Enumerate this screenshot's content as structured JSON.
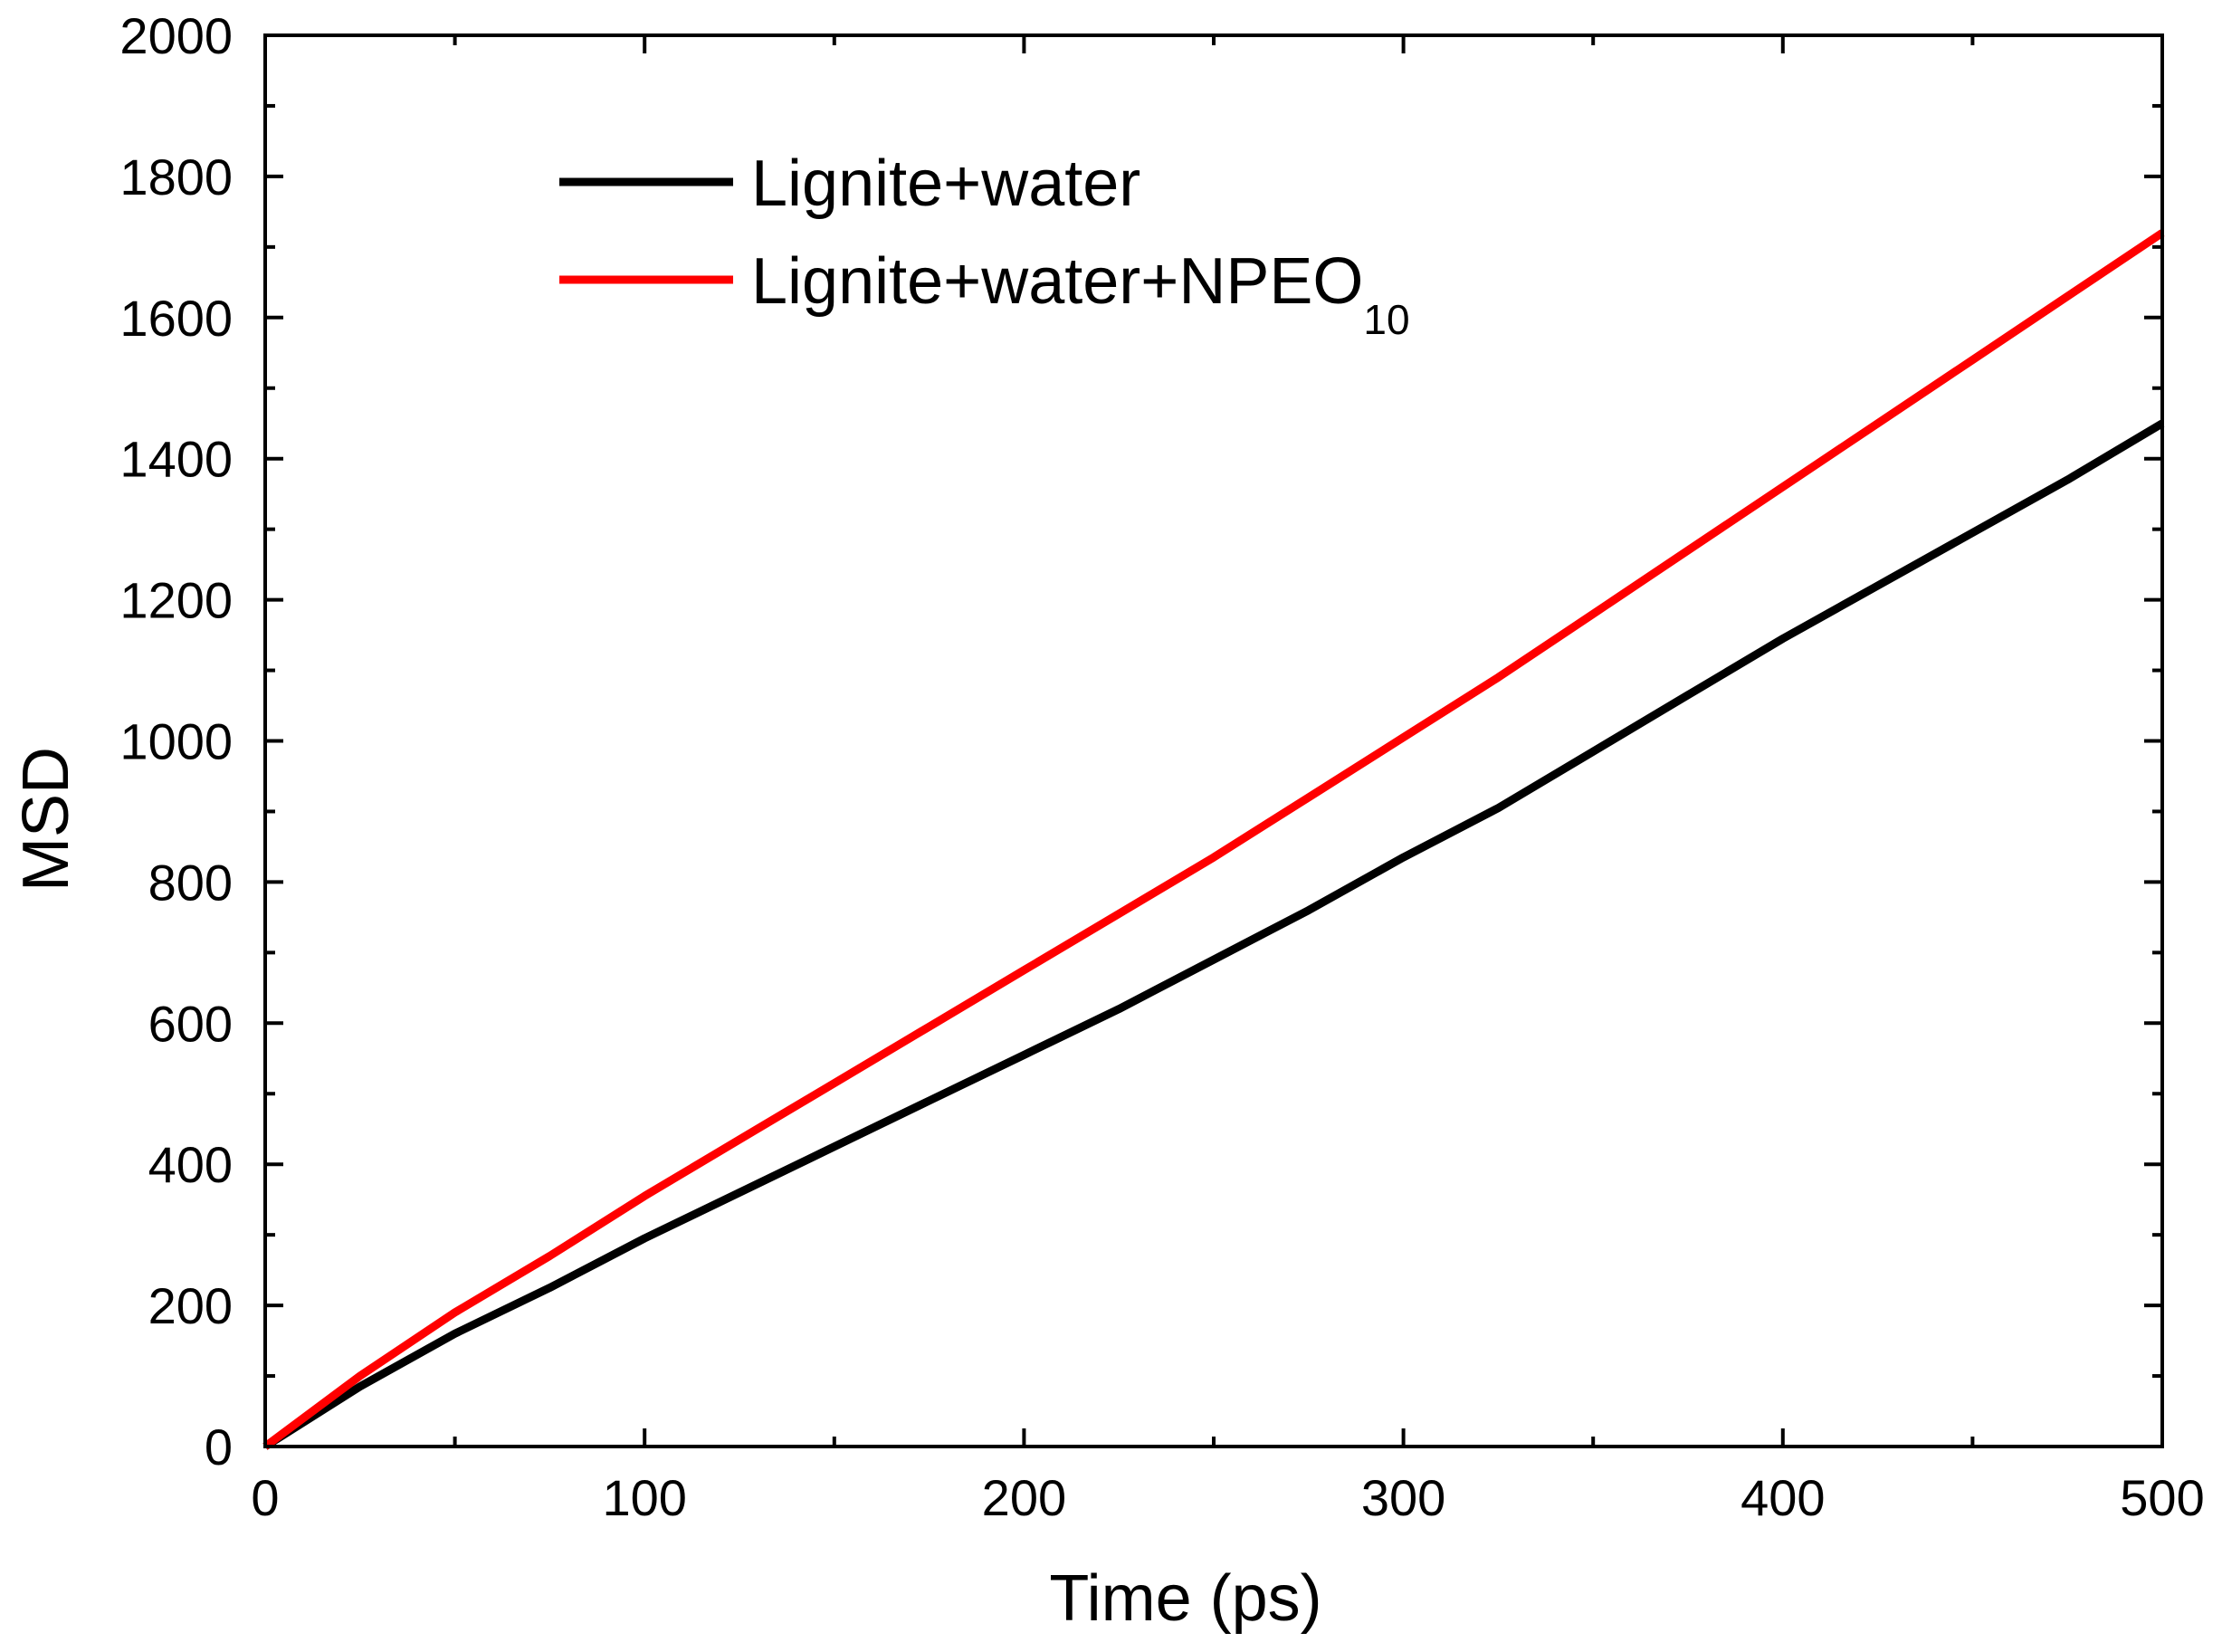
{
  "chart_data": {
    "type": "line",
    "title": "",
    "xlabel": "Time (ps)",
    "ylabel": "MSD",
    "xlim": [
      0,
      500
    ],
    "ylim": [
      0,
      2000
    ],
    "xticks": [
      0,
      100,
      200,
      300,
      400,
      500
    ],
    "xticks_minor": [
      50,
      150,
      250,
      350,
      450
    ],
    "yticks": [
      0,
      200,
      400,
      600,
      800,
      1000,
      1200,
      1400,
      1600,
      1800,
      2000
    ],
    "yticks_minor": [
      100,
      300,
      500,
      700,
      900,
      1100,
      1300,
      1500,
      1700,
      1900
    ],
    "grid": false,
    "legend_position": "top-left",
    "series": [
      {
        "name": "Lignite+water",
        "legend_label": "Lignite+water",
        "color": "#000000",
        "x": [
          0,
          25,
          50,
          75,
          100,
          125,
          150,
          175,
          200,
          225,
          250,
          275,
          300,
          325,
          350,
          375,
          400,
          425,
          450,
          475,
          500
        ],
        "y": [
          0,
          85,
          160,
          225,
          295,
          360,
          425,
          490,
          555,
          620,
          690,
          760,
          835,
          905,
          985,
          1065,
          1145,
          1220,
          1295,
          1370,
          1450
        ]
      },
      {
        "name": "Lignite+water+NPEO10",
        "legend_label": "Lignite+water+NPEO",
        "legend_subscript": "10",
        "color": "#ff0000",
        "x": [
          0,
          25,
          50,
          75,
          100,
          125,
          150,
          175,
          200,
          225,
          250,
          275,
          300,
          325,
          350,
          375,
          400,
          425,
          450,
          475,
          500
        ],
        "y": [
          0,
          100,
          190,
          270,
          355,
          435,
          515,
          595,
          675,
          755,
          835,
          920,
          1005,
          1090,
          1180,
          1270,
          1360,
          1450,
          1540,
          1630,
          1720
        ]
      }
    ]
  }
}
